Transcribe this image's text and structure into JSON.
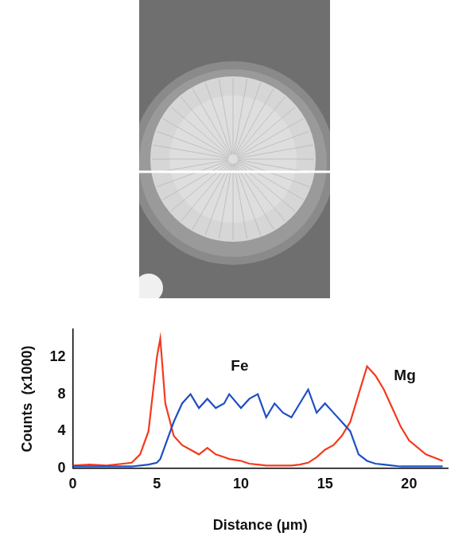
{
  "chart_data": {
    "type": "line",
    "x_label": "Distance (μm)",
    "y_label": "Counts  (x1000)",
    "x": [
      0,
      1,
      2,
      3,
      3.5,
      4,
      4.5,
      5,
      5.2,
      5.5,
      6,
      6.5,
      7,
      7.5,
      8,
      8.5,
      9,
      9.3,
      10,
      10.5,
      11,
      11.5,
      12,
      12.5,
      13,
      13.5,
      14,
      14.5,
      15,
      15.5,
      16,
      16.5,
      17,
      17.5,
      18,
      18.5,
      19,
      19.5,
      20,
      21,
      22
    ],
    "series": [
      {
        "name": "Fe",
        "color": "#1f4fc4",
        "values": [
          0.2,
          0.2,
          0.2,
          0.2,
          0.2,
          0.3,
          0.4,
          0.6,
          1,
          2.5,
          5,
          7,
          8,
          6.5,
          7.5,
          6.5,
          7,
          8,
          6.5,
          7.5,
          8,
          5.5,
          7,
          6,
          5.5,
          7,
          8.5,
          6,
          7,
          6,
          5,
          4,
          1.5,
          0.8,
          0.5,
          0.4,
          0.3,
          0.2,
          0.2,
          0.2,
          0.2
        ]
      },
      {
        "name": "Mg",
        "color": "#f5391c",
        "values": [
          0.3,
          0.4,
          0.3,
          0.5,
          0.6,
          1.5,
          4,
          12,
          14,
          7,
          3.5,
          2.5,
          2,
          1.5,
          2.2,
          1.5,
          1.2,
          1,
          0.8,
          0.5,
          0.4,
          0.3,
          0.3,
          0.3,
          0.3,
          0.4,
          0.6,
          1.2,
          2,
          2.5,
          3.5,
          5,
          8,
          11,
          10,
          8.5,
          6.5,
          4.5,
          3,
          1.5,
          0.8
        ]
      }
    ],
    "annotations": [
      {
        "text": "Fe",
        "x": 9.4,
        "y": 11
      },
      {
        "text": "Mg",
        "x": 19.1,
        "y": 10
      }
    ],
    "xlim": [
      0,
      22.3
    ],
    "xticks": [
      0,
      5,
      10,
      15,
      20
    ],
    "ylim": [
      0,
      15
    ],
    "yticks": [
      0,
      4,
      8,
      12
    ],
    "grid": false
  }
}
